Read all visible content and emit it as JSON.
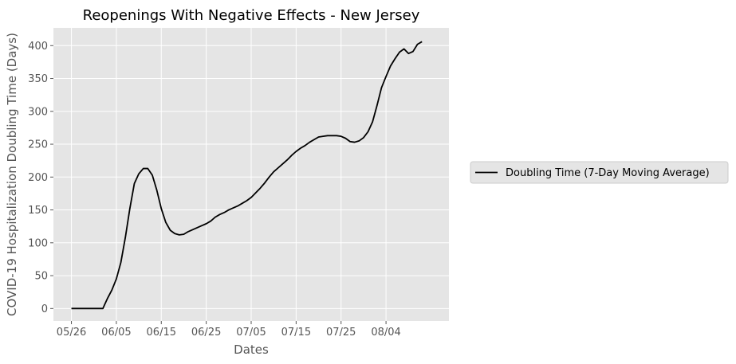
{
  "chart_data": {
    "type": "line",
    "title": "Reopenings With Negative Effects - New Jersey",
    "xlabel": "Dates",
    "ylabel": "COVID-19 Hospitalization Doubling Time (Days)",
    "x_ticks": [
      "05/26",
      "06/05",
      "06/15",
      "06/25",
      "07/05",
      "07/15",
      "07/25",
      "08/04"
    ],
    "y_ticks": [
      0,
      50,
      100,
      150,
      200,
      250,
      300,
      350,
      400
    ],
    "ylim": [
      -19,
      427
    ],
    "xlim": [
      "2020-05-22",
      "2020-08-18"
    ],
    "grid": true,
    "legend_position": "right, outside plot area",
    "colors": {
      "background": "#e5e5e5",
      "grid": "#ffffff",
      "line": "#000000"
    },
    "series": [
      {
        "name": "Doubling Time (7-Day Moving Average)",
        "color": "#000000",
        "x": [
          "2020-05-26",
          "2020-05-27",
          "2020-05-28",
          "2020-05-29",
          "2020-05-30",
          "2020-05-31",
          "2020-06-01",
          "2020-06-02",
          "2020-06-03",
          "2020-06-04",
          "2020-06-05",
          "2020-06-06",
          "2020-06-07",
          "2020-06-08",
          "2020-06-09",
          "2020-06-10",
          "2020-06-11",
          "2020-06-12",
          "2020-06-13",
          "2020-06-14",
          "2020-06-15",
          "2020-06-16",
          "2020-06-17",
          "2020-06-18",
          "2020-06-19",
          "2020-06-20",
          "2020-06-21",
          "2020-06-22",
          "2020-06-23",
          "2020-06-24",
          "2020-06-25",
          "2020-06-26",
          "2020-06-27",
          "2020-06-28",
          "2020-06-29",
          "2020-06-30",
          "2020-07-01",
          "2020-07-02",
          "2020-07-03",
          "2020-07-04",
          "2020-07-05",
          "2020-07-06",
          "2020-07-07",
          "2020-07-08",
          "2020-07-09",
          "2020-07-10",
          "2020-07-11",
          "2020-07-12",
          "2020-07-13",
          "2020-07-14",
          "2020-07-15",
          "2020-07-16",
          "2020-07-17",
          "2020-07-18",
          "2020-07-19",
          "2020-07-20",
          "2020-07-21",
          "2020-07-22",
          "2020-07-23",
          "2020-07-24",
          "2020-07-25",
          "2020-07-26",
          "2020-07-27",
          "2020-07-28",
          "2020-07-29",
          "2020-07-30",
          "2020-07-31",
          "2020-08-01",
          "2020-08-02",
          "2020-08-03",
          "2020-08-04",
          "2020-08-05",
          "2020-08-06",
          "2020-08-07",
          "2020-08-08",
          "2020-08-09",
          "2020-08-10",
          "2020-08-11",
          "2020-08-12"
        ],
        "y": [
          0,
          0,
          0,
          0,
          0,
          0,
          0,
          0,
          15,
          28,
          45,
          70,
          108,
          152,
          190,
          205,
          213,
          213,
          203,
          180,
          152,
          131,
          119,
          114,
          112,
          113,
          117,
          120,
          123,
          126,
          129,
          133,
          139,
          143,
          146,
          150,
          153,
          156,
          160,
          164,
          169,
          176,
          183,
          191,
          200,
          208,
          214,
          220,
          226,
          233,
          239,
          244,
          248,
          253,
          257,
          261,
          262,
          263,
          263,
          263,
          262,
          259,
          254,
          253,
          255,
          260,
          269,
          284,
          309,
          336,
          353,
          369,
          380,
          390,
          395,
          388,
          391,
          402,
          406
        ]
      }
    ]
  }
}
